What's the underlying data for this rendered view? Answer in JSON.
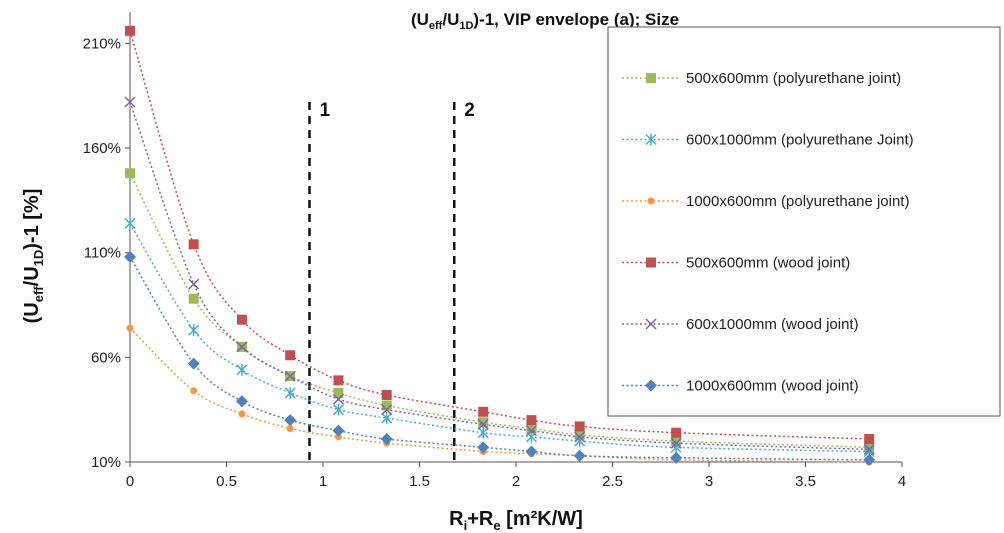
{
  "chart_data": {
    "type": "line",
    "title": {
      "main": "(U",
      "sub1": "eff",
      "mid": "/U",
      "sub2": "1D",
      "tail": ")-1, VIP envelope (a); Size"
    },
    "ylabel": {
      "main": "(U",
      "sub1": "eff",
      "mid": "/U",
      "sub2": "1D",
      "tail": ")-1 [%]"
    },
    "xlabel": {
      "r": "R",
      "sub_i": "i",
      "plus": "+R",
      "sub_e": "e",
      "unit": " [m²K/W]"
    },
    "xlim": [
      0,
      4
    ],
    "ylim": [
      10,
      225
    ],
    "x_ticks": [
      "0",
      "0.5",
      "1",
      "1.5",
      "2",
      "2.5",
      "3",
      "3.5",
      "4"
    ],
    "x_tick_values": [
      0,
      0.5,
      1,
      1.5,
      2,
      2.5,
      3,
      3.5,
      4
    ],
    "y_ticks": [
      "10%",
      "60%",
      "110%",
      "160%",
      "210%"
    ],
    "y_tick_values": [
      10,
      60,
      110,
      160,
      210
    ],
    "grid": false,
    "legend_position": "right",
    "vertical_markers": [
      {
        "x": 0.93,
        "label": "1"
      },
      {
        "x": 1.68,
        "label": "2"
      }
    ],
    "series": [
      {
        "name": "500x600mm (polyurethane joint)",
        "color": "#9bbb59",
        "marker": "square",
        "x": [
          0,
          0.33,
          0.58,
          0.83,
          1.08,
          1.33,
          1.83,
          2.08,
          2.33,
          2.83,
          3.83
        ],
        "y": [
          148,
          88,
          65,
          51,
          43,
          37,
          29,
          26,
          23,
          20,
          17
        ]
      },
      {
        "name": "600x1000mm (polyurethane Joint)",
        "color": "#4bacc6",
        "marker": "asterisk",
        "x": [
          0,
          0.33,
          0.58,
          0.83,
          1.08,
          1.33,
          1.83,
          2.08,
          2.33,
          2.83,
          3.83
        ],
        "y": [
          124,
          73,
          54,
          43,
          35,
          31,
          24,
          22,
          20,
          17,
          15
        ]
      },
      {
        "name": "1000x600mm (polyurethane joint)",
        "color": "#f79646",
        "marker": "circle",
        "x": [
          0,
          0.33,
          0.58,
          0.83,
          1.08,
          1.33,
          1.83,
          2.08,
          2.33,
          2.83,
          3.83
        ],
        "y": [
          74,
          44,
          33,
          26,
          22,
          19,
          15,
          14,
          13,
          11,
          10
        ]
      },
      {
        "name": "500x600mm (wood joint)",
        "color": "#c0504d",
        "marker": "square",
        "x": [
          0,
          0.33,
          0.58,
          0.83,
          1.08,
          1.33,
          1.83,
          2.08,
          2.33,
          2.83,
          3.83
        ],
        "y": [
          216,
          114,
          78,
          61,
          49,
          42,
          34,
          30,
          27,
          24,
          21
        ]
      },
      {
        "name": "600x1000mm (wood joint)",
        "color": "#8064a2",
        "marker": "x",
        "x": [
          0,
          0.33,
          0.58,
          0.83,
          1.08,
          1.33,
          1.83,
          2.08,
          2.33,
          2.83,
          3.83
        ],
        "y": [
          182,
          95,
          65,
          51,
          40,
          35,
          28,
          25,
          22,
          19,
          16
        ]
      },
      {
        "name": "1000x600mm (wood joint)",
        "color": "#4f81bd",
        "marker": "diamond",
        "x": [
          0,
          0.33,
          0.58,
          0.83,
          1.08,
          1.33,
          1.83,
          2.08,
          2.33,
          2.83,
          3.83
        ],
        "y": [
          108,
          57,
          39,
          30,
          25,
          21,
          17,
          15,
          13,
          12,
          11
        ]
      }
    ]
  }
}
